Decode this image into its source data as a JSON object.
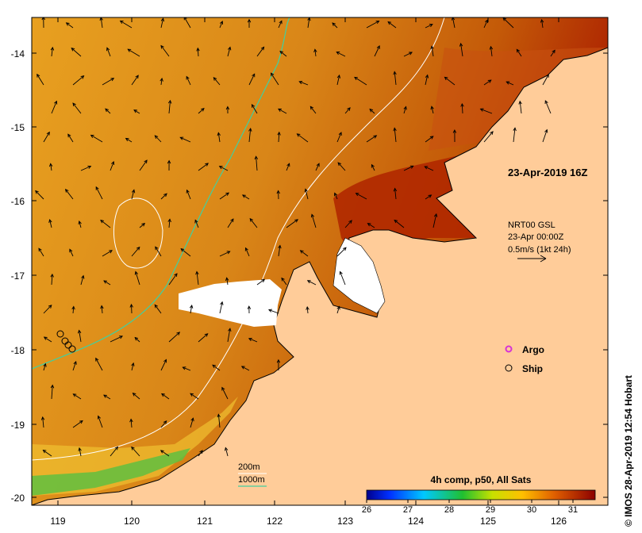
{
  "map": {
    "lon_ticks": [
      "119",
      "120",
      "121",
      "122",
      "123",
      "124",
      "125",
      "126"
    ],
    "lat_ticks": [
      "-14",
      "-15",
      "-16",
      "-17",
      "-18",
      "-19",
      "-20"
    ],
    "title": "23-Apr-2019 16Z",
    "currents": {
      "line1": "NRT00 GSL",
      "line2": "23-Apr 00:00Z",
      "line3": "0.5m/s (1kt 24h)"
    },
    "legend": {
      "argo": "Argo",
      "ship": "Ship",
      "argo_color": "#d633d6"
    },
    "contours": {
      "shallow": "200m",
      "deep": "1000m",
      "shallow_color": "#ffffff",
      "deep_color": "#40d0a0"
    },
    "colorbar": {
      "title": "4h comp, p50, All Sats",
      "ticks": [
        "26",
        "27",
        "28",
        "29",
        "30",
        "31"
      ]
    },
    "credit": "© IMOS 28-Apr-2019 12:54 Hobart",
    "colors": {
      "land": "#ffcc99",
      "warm": "#d98a1a",
      "hot": "#b02000",
      "cool": "#e6a820"
    }
  }
}
